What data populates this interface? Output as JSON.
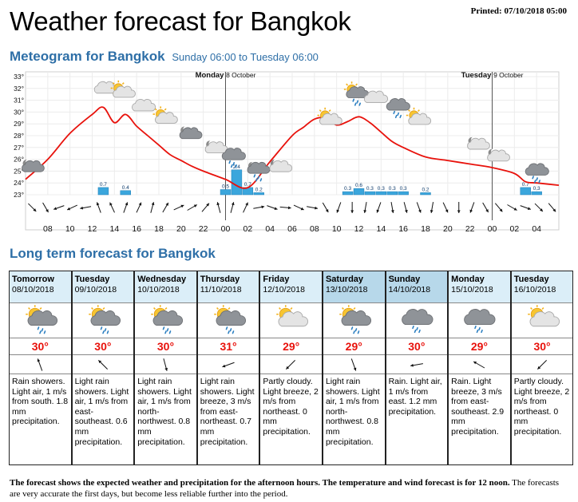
{
  "header": {
    "printed": "Printed: 07/10/2018 05:00",
    "title": "Weather forecast for Bangkok",
    "meteogram_title": "Meteogram for Bangkok",
    "meteogram_range": "Sunday 06:00 to Tuesday 06:00",
    "longterm_title": "Long term forecast for Bangkok"
  },
  "chart_data": {
    "type": "line",
    "title": "Meteogram for Bangkok",
    "y_ticks": [
      "23°",
      "24°",
      "25°",
      "26°",
      "27°",
      "28°",
      "29°",
      "30°",
      "31°",
      "32°",
      "33°"
    ],
    "ylim": [
      23,
      33
    ],
    "x_tick_labels": [
      "08",
      "10",
      "12",
      "14",
      "16",
      "18",
      "20",
      "22",
      "00",
      "02",
      "04",
      "06",
      "08",
      "10",
      "12",
      "14",
      "16",
      "18",
      "20",
      "22",
      "00",
      "02",
      "04"
    ],
    "x_tick_hours": [
      2,
      4,
      6,
      8,
      10,
      12,
      14,
      16,
      18,
      20,
      22,
      24,
      26,
      28,
      30,
      32,
      34,
      36,
      38,
      40,
      42,
      44,
      46
    ],
    "day_markers": [
      {
        "hour": 18,
        "day": "Monday",
        "date": "8 October"
      },
      {
        "hour": 42,
        "day": "Tuesday",
        "date": "9 October"
      }
    ],
    "temperature": {
      "hours": [
        0,
        2,
        4,
        6,
        7,
        8,
        9,
        10,
        11,
        12,
        13,
        14,
        15,
        16,
        18,
        20,
        22,
        24,
        25,
        26,
        27,
        28,
        29,
        30,
        31,
        32,
        33,
        34,
        36,
        38,
        40,
        42,
        44,
        45,
        46,
        48
      ],
      "values": [
        24.3,
        26.0,
        28.2,
        29.8,
        30.4,
        29.1,
        29.8,
        28.8,
        28.0,
        27.2,
        26.4,
        25.9,
        25.4,
        25.0,
        24.3,
        23.6,
        25.8,
        28.0,
        28.7,
        29.4,
        29.5,
        28.9,
        29.2,
        29.6,
        29.1,
        28.3,
        27.5,
        27.0,
        26.2,
        25.9,
        25.6,
        25.3,
        24.8,
        24.1,
        24.0,
        23.8
      ]
    },
    "precipitation": {
      "hours": [
        7,
        9,
        18,
        19,
        20,
        21,
        29,
        30,
        31,
        32,
        33,
        34,
        36,
        45,
        46
      ],
      "values": [
        0.7,
        0.4,
        0.5,
        2.4,
        0.7,
        0.2,
        0.3,
        0.6,
        0.3,
        0.3,
        0.3,
        0.3,
        0.2,
        0.7,
        0.3
      ],
      "labels": [
        "0.7",
        "0.4",
        "0.5",
        "2.4",
        "0.7",
        "0.2",
        "0.3",
        "0.6",
        "0.3",
        "0.3",
        "0.3",
        "0.3",
        "0.2",
        "0.7",
        "0.3"
      ]
    },
    "wind_arrows_deg": [
      135,
      150,
      250,
      245,
      260,
      340,
      335,
      20,
      25,
      15,
      30,
      65,
      60,
      40,
      345,
      15,
      25,
      80,
      110,
      95,
      115,
      100,
      150,
      200,
      180,
      190,
      200,
      170,
      165,
      160,
      190,
      155,
      180,
      200,
      150,
      140,
      120,
      110,
      135,
      140
    ],
    "weather_icons": [
      {
        "hour": 0.5,
        "temp": 25.4,
        "icon": "night-cloudy"
      },
      {
        "hour": 7.2,
        "temp": 32.0,
        "icon": "cloudy"
      },
      {
        "hour": 8.7,
        "temp": 31.7,
        "icon": "partly-cloudy"
      },
      {
        "hour": 10.6,
        "temp": 30.5,
        "icon": "cloudy"
      },
      {
        "hour": 12.5,
        "temp": 29.5,
        "icon": "partly-cloudy"
      },
      {
        "hour": 14.7,
        "temp": 28.2,
        "icon": "night-cloudy"
      },
      {
        "hour": 17.0,
        "temp": 27.0,
        "icon": "night-partly-cloudy"
      },
      {
        "hour": 18.7,
        "temp": 26.3,
        "icon": "cloudy-rain"
      },
      {
        "hour": 20.8,
        "temp": 25.2,
        "icon": "night-rain"
      },
      {
        "hour": 22.8,
        "temp": 25.4,
        "icon": "night-partly-cloudy"
      },
      {
        "hour": 27.3,
        "temp": 29.4,
        "icon": "partly-cloudy"
      },
      {
        "hour": 29.7,
        "temp": 31.6,
        "icon": "sun-rain"
      },
      {
        "hour": 31.5,
        "temp": 31.2,
        "icon": "cloudy"
      },
      {
        "hour": 33.5,
        "temp": 30.5,
        "icon": "cloudy-rain"
      },
      {
        "hour": 35.3,
        "temp": 29.4,
        "icon": "partly-cloudy"
      },
      {
        "hour": 40.6,
        "temp": 27.3,
        "icon": "night-partly-cloudy"
      },
      {
        "hour": 42.4,
        "temp": 26.3,
        "icon": "night-partly-cloudy"
      },
      {
        "hour": 46.0,
        "temp": 25.0,
        "icon": "cloudy-rain"
      }
    ]
  },
  "forecast": [
    {
      "day": "Tomorrow",
      "date": "08/10/2018",
      "temp": "30°",
      "icon": "sun-rain",
      "wind_deg": 340,
      "desc": "Rain showers. Light air, 1 m/s from south. 1.8 mm precipitation.",
      "weekend": false
    },
    {
      "day": "Tuesday",
      "date": "09/10/2018",
      "temp": "30°",
      "icon": "sun-rain",
      "wind_deg": 315,
      "desc": "Light rain showers. Light air, 1 m/s from east-southeast. 0.6 mm precipitation.",
      "weekend": false
    },
    {
      "day": "Wednesday",
      "date": "10/10/2018",
      "temp": "30°",
      "icon": "sun-rain",
      "wind_deg": 165,
      "desc": "Light rain showers. Light air, 1 m/s from north-northwest. 0.8 mm precipitation.",
      "weekend": false
    },
    {
      "day": "Thursday",
      "date": "11/10/2018",
      "temp": "31°",
      "icon": "sun-rain",
      "wind_deg": 250,
      "desc": "Light rain showers. Light breeze, 3 m/s from east-northeast. 0.7 mm precipitation.",
      "weekend": false
    },
    {
      "day": "Friday",
      "date": "12/10/2018",
      "temp": "29°",
      "icon": "partly-cloudy",
      "wind_deg": 225,
      "desc": "Partly cloudy. Light breeze, 2 m/s from northeast. 0 mm precipitation.",
      "weekend": false
    },
    {
      "day": "Saturday",
      "date": "13/10/2018",
      "temp": "29°",
      "icon": "sun-rain",
      "wind_deg": 160,
      "desc": "Light rain showers. Light air, 1 m/s from north-northwest. 0.8 mm precipitation.",
      "weekend": true
    },
    {
      "day": "Sunday",
      "date": "14/10/2018",
      "temp": "30°",
      "icon": "cloudy-rain",
      "wind_deg": 260,
      "desc": "Rain. Light air, 1 m/s from east. 1.2 mm precipitation.",
      "weekend": true
    },
    {
      "day": "Monday",
      "date": "15/10/2018",
      "temp": "29°",
      "icon": "cloudy-rain",
      "wind_deg": 300,
      "desc": "Rain. Light breeze, 3 m/s from east-southeast. 2.9 mm precipitation.",
      "weekend": false
    },
    {
      "day": "Tuesday",
      "date": "16/10/2018",
      "temp": "30°",
      "icon": "partly-cloudy",
      "wind_deg": 225,
      "desc": "Partly cloudy. Light breeze, 2 m/s from northeast. 0 mm precipitation.",
      "weekend": false
    }
  ],
  "footer": {
    "bold": "The forecast shows the expected weather and precipitation for the afternoon hours. The temperature and wind forecast is for 12 noon.",
    "normal": "The forecasts are very accurate the first days, but become less reliable further into the period."
  },
  "colors": {
    "temperature": "#e8120c",
    "precipitation": "#3ba6dc",
    "title_blue": "#2e6fa7"
  }
}
